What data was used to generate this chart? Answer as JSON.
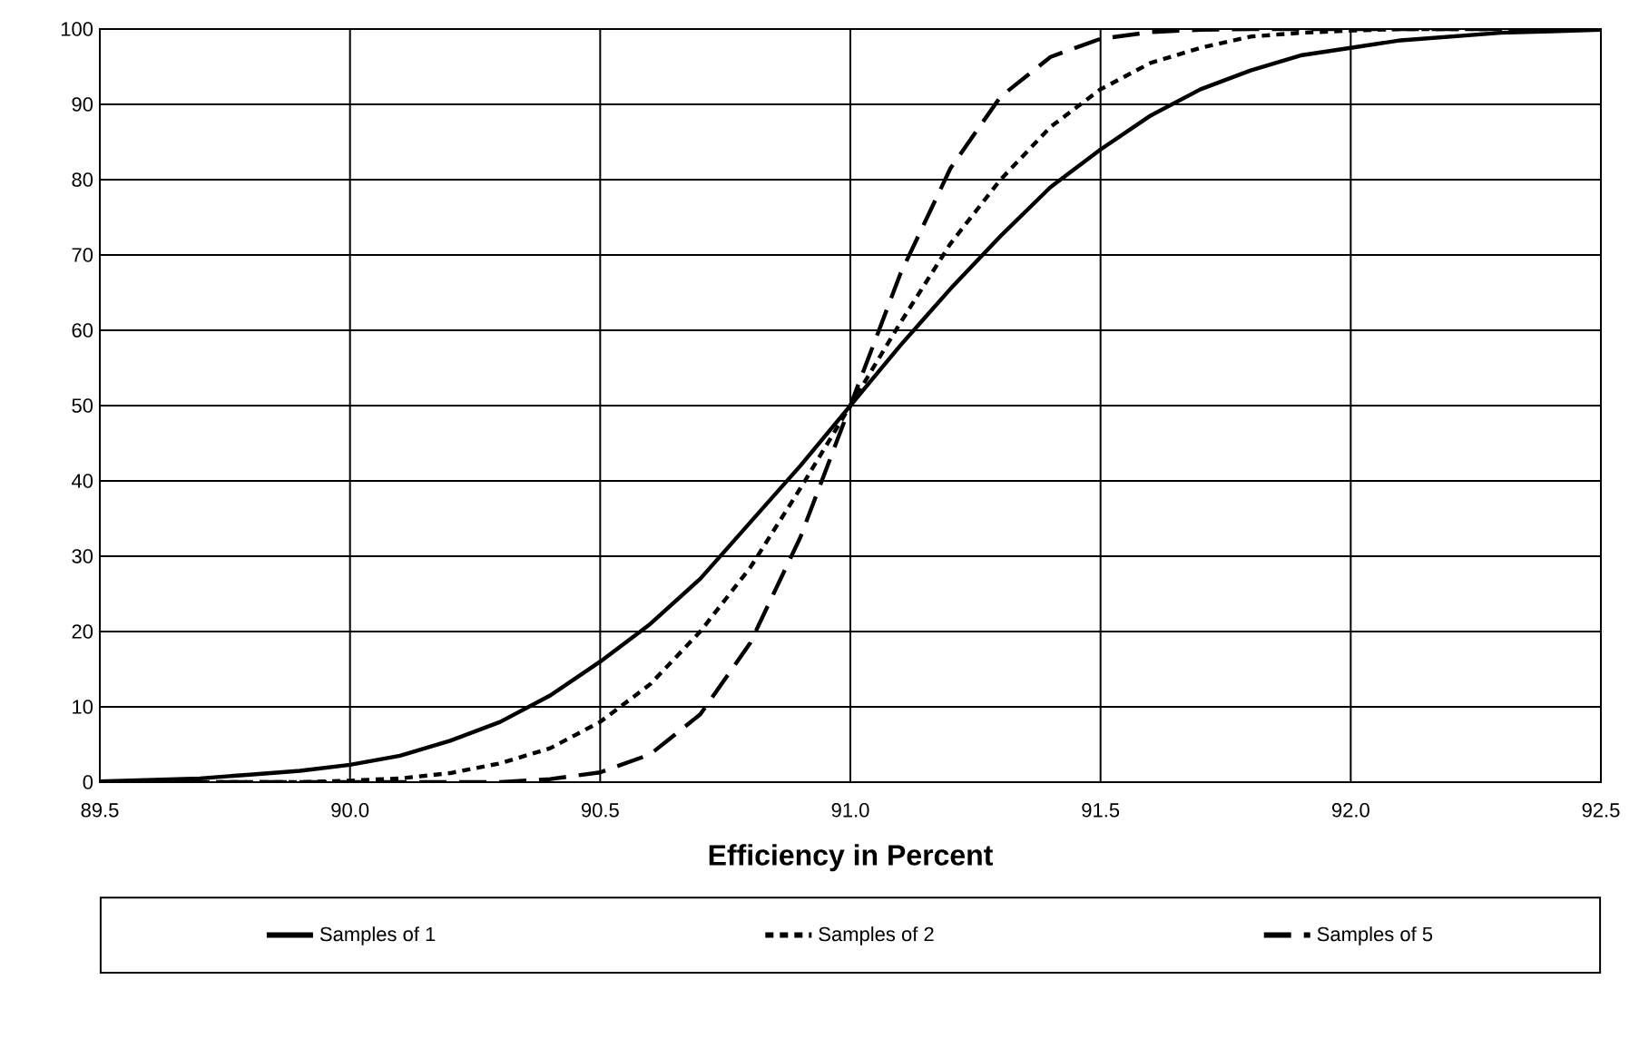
{
  "chart_data": {
    "type": "line",
    "xlabel": "Efficiency in Percent",
    "xlim": [
      89.5,
      92.5
    ],
    "ylim": [
      0,
      100
    ],
    "xticks": [
      89.5,
      {
        "value": 90,
        "label": "90.0"
      },
      90.5,
      {
        "value": 91,
        "label": "91.0"
      },
      91.5,
      {
        "value": 92,
        "label": "92.0"
      },
      92.5
    ],
    "yticks": [
      0,
      10,
      20,
      30,
      40,
      50,
      60,
      70,
      80,
      90,
      100
    ],
    "grid": true,
    "legend": "bottom",
    "x": [
      89.5,
      89.6,
      89.7,
      89.8,
      89.9,
      90.0,
      90.1,
      90.2,
      90.3,
      90.4,
      90.5,
      90.6,
      90.7,
      90.8,
      90.9,
      91.0,
      91.1,
      91.2,
      91.3,
      91.4,
      91.5,
      91.6,
      91.7,
      91.8,
      91.9,
      92.0,
      92.1,
      92.2,
      92.3,
      92.4,
      92.5
    ],
    "series": [
      {
        "name": "Samples of 1",
        "color": "#000000",
        "line_style": "solid",
        "values": [
          0.1,
          0.3,
          0.5,
          1,
          1.5,
          2.3,
          3.5,
          5.5,
          8,
          11.5,
          16,
          21,
          27,
          34.5,
          42,
          50,
          58,
          65.5,
          72.5,
          79,
          84,
          88.5,
          92,
          94.5,
          96.5,
          97.5,
          98.5,
          99,
          99.5,
          99.7,
          99.9
        ]
      },
      {
        "name": "Samples of 2",
        "color": "#000000",
        "line_style": "dotted",
        "values": [
          0,
          0,
          0,
          0,
          0,
          0.2,
          0.5,
          1.2,
          2.5,
          4.5,
          8,
          13,
          20,
          28.5,
          39,
          50,
          61,
          71.5,
          80,
          87,
          92,
          95.5,
          97.5,
          99,
          99.5,
          99.8,
          100,
          100,
          100,
          100,
          100
        ]
      },
      {
        "name": "Samples of 5",
        "color": "#000000",
        "line_style": "dashed",
        "x": [
          89.5,
          89.6,
          89.7,
          89.8,
          89.9,
          90.0,
          90.1,
          90.2,
          90.3,
          90.4,
          90.5,
          90.6,
          90.7,
          90.8,
          90.9,
          91.0,
          91.1,
          91.2,
          91.3,
          91.4,
          91.5,
          91.6,
          91.7,
          91.8,
          91.9,
          92.0,
          92.1,
          92.2,
          92.3,
          92.4
        ],
        "values": [
          0,
          0,
          0,
          0,
          0,
          0,
          0,
          0,
          0,
          0.4,
          1.3,
          3.7,
          9,
          18.5,
          32.5,
          50,
          67.5,
          81.5,
          91,
          96.3,
          98.7,
          99.6,
          99.9,
          100,
          100,
          100,
          100,
          100,
          100,
          100
        ]
      }
    ]
  }
}
